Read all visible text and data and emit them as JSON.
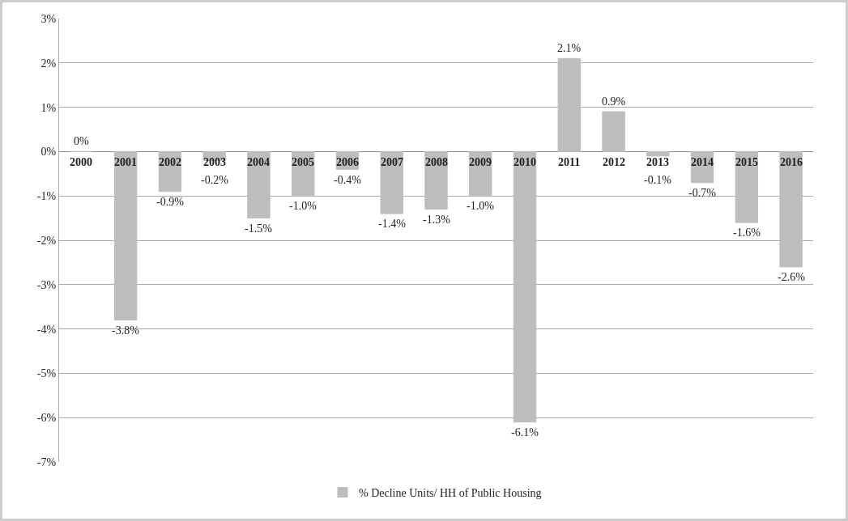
{
  "chart_data": {
    "type": "bar",
    "categories": [
      "2000",
      "2001",
      "2002",
      "2003",
      "2004",
      "2005",
      "2006",
      "2007",
      "2008",
      "2009",
      "2010",
      "2011",
      "2012",
      "2013",
      "2014",
      "2015",
      "2016"
    ],
    "series": [
      {
        "name": "% Decline Units/ HH of Public Housing",
        "color": "#bdbdbd",
        "values": [
          0,
          -3.8,
          -0.9,
          -0.2,
          -1.5,
          -1.0,
          -0.4,
          -1.4,
          -1.3,
          -1.0,
          -6.1,
          2.1,
          0.9,
          -0.1,
          -0.7,
          -1.6,
          -2.6
        ],
        "value_labels": [
          "0%",
          "-3.8%",
          "-0.9%",
          "-0.2%",
          "-1.5%",
          "-1.0%",
          "-0.4%",
          "-1.4%",
          "-1.3%",
          "-1.0%",
          "-6.1%",
          "2.1%",
          "0.9%",
          "-0.1%",
          "-0.7%",
          "-1.6%",
          "-2.6%"
        ]
      }
    ],
    "ylim": [
      -7,
      3
    ],
    "yticks": [
      {
        "value": -7,
        "label": "-7%"
      },
      {
        "value": -6,
        "label": "-6%"
      },
      {
        "value": -5,
        "label": "-5%"
      },
      {
        "value": -4,
        "label": "-4%"
      },
      {
        "value": -3,
        "label": "-3%"
      },
      {
        "value": -2,
        "label": "-2%"
      },
      {
        "value": -1,
        "label": "-1%"
      },
      {
        "value": 0,
        "label": "0%"
      },
      {
        "value": 1,
        "label": "1%"
      },
      {
        "value": 2,
        "label": "2%"
      },
      {
        "value": 3,
        "label": "3%"
      }
    ],
    "grid": "y",
    "legend": "bottom"
  }
}
